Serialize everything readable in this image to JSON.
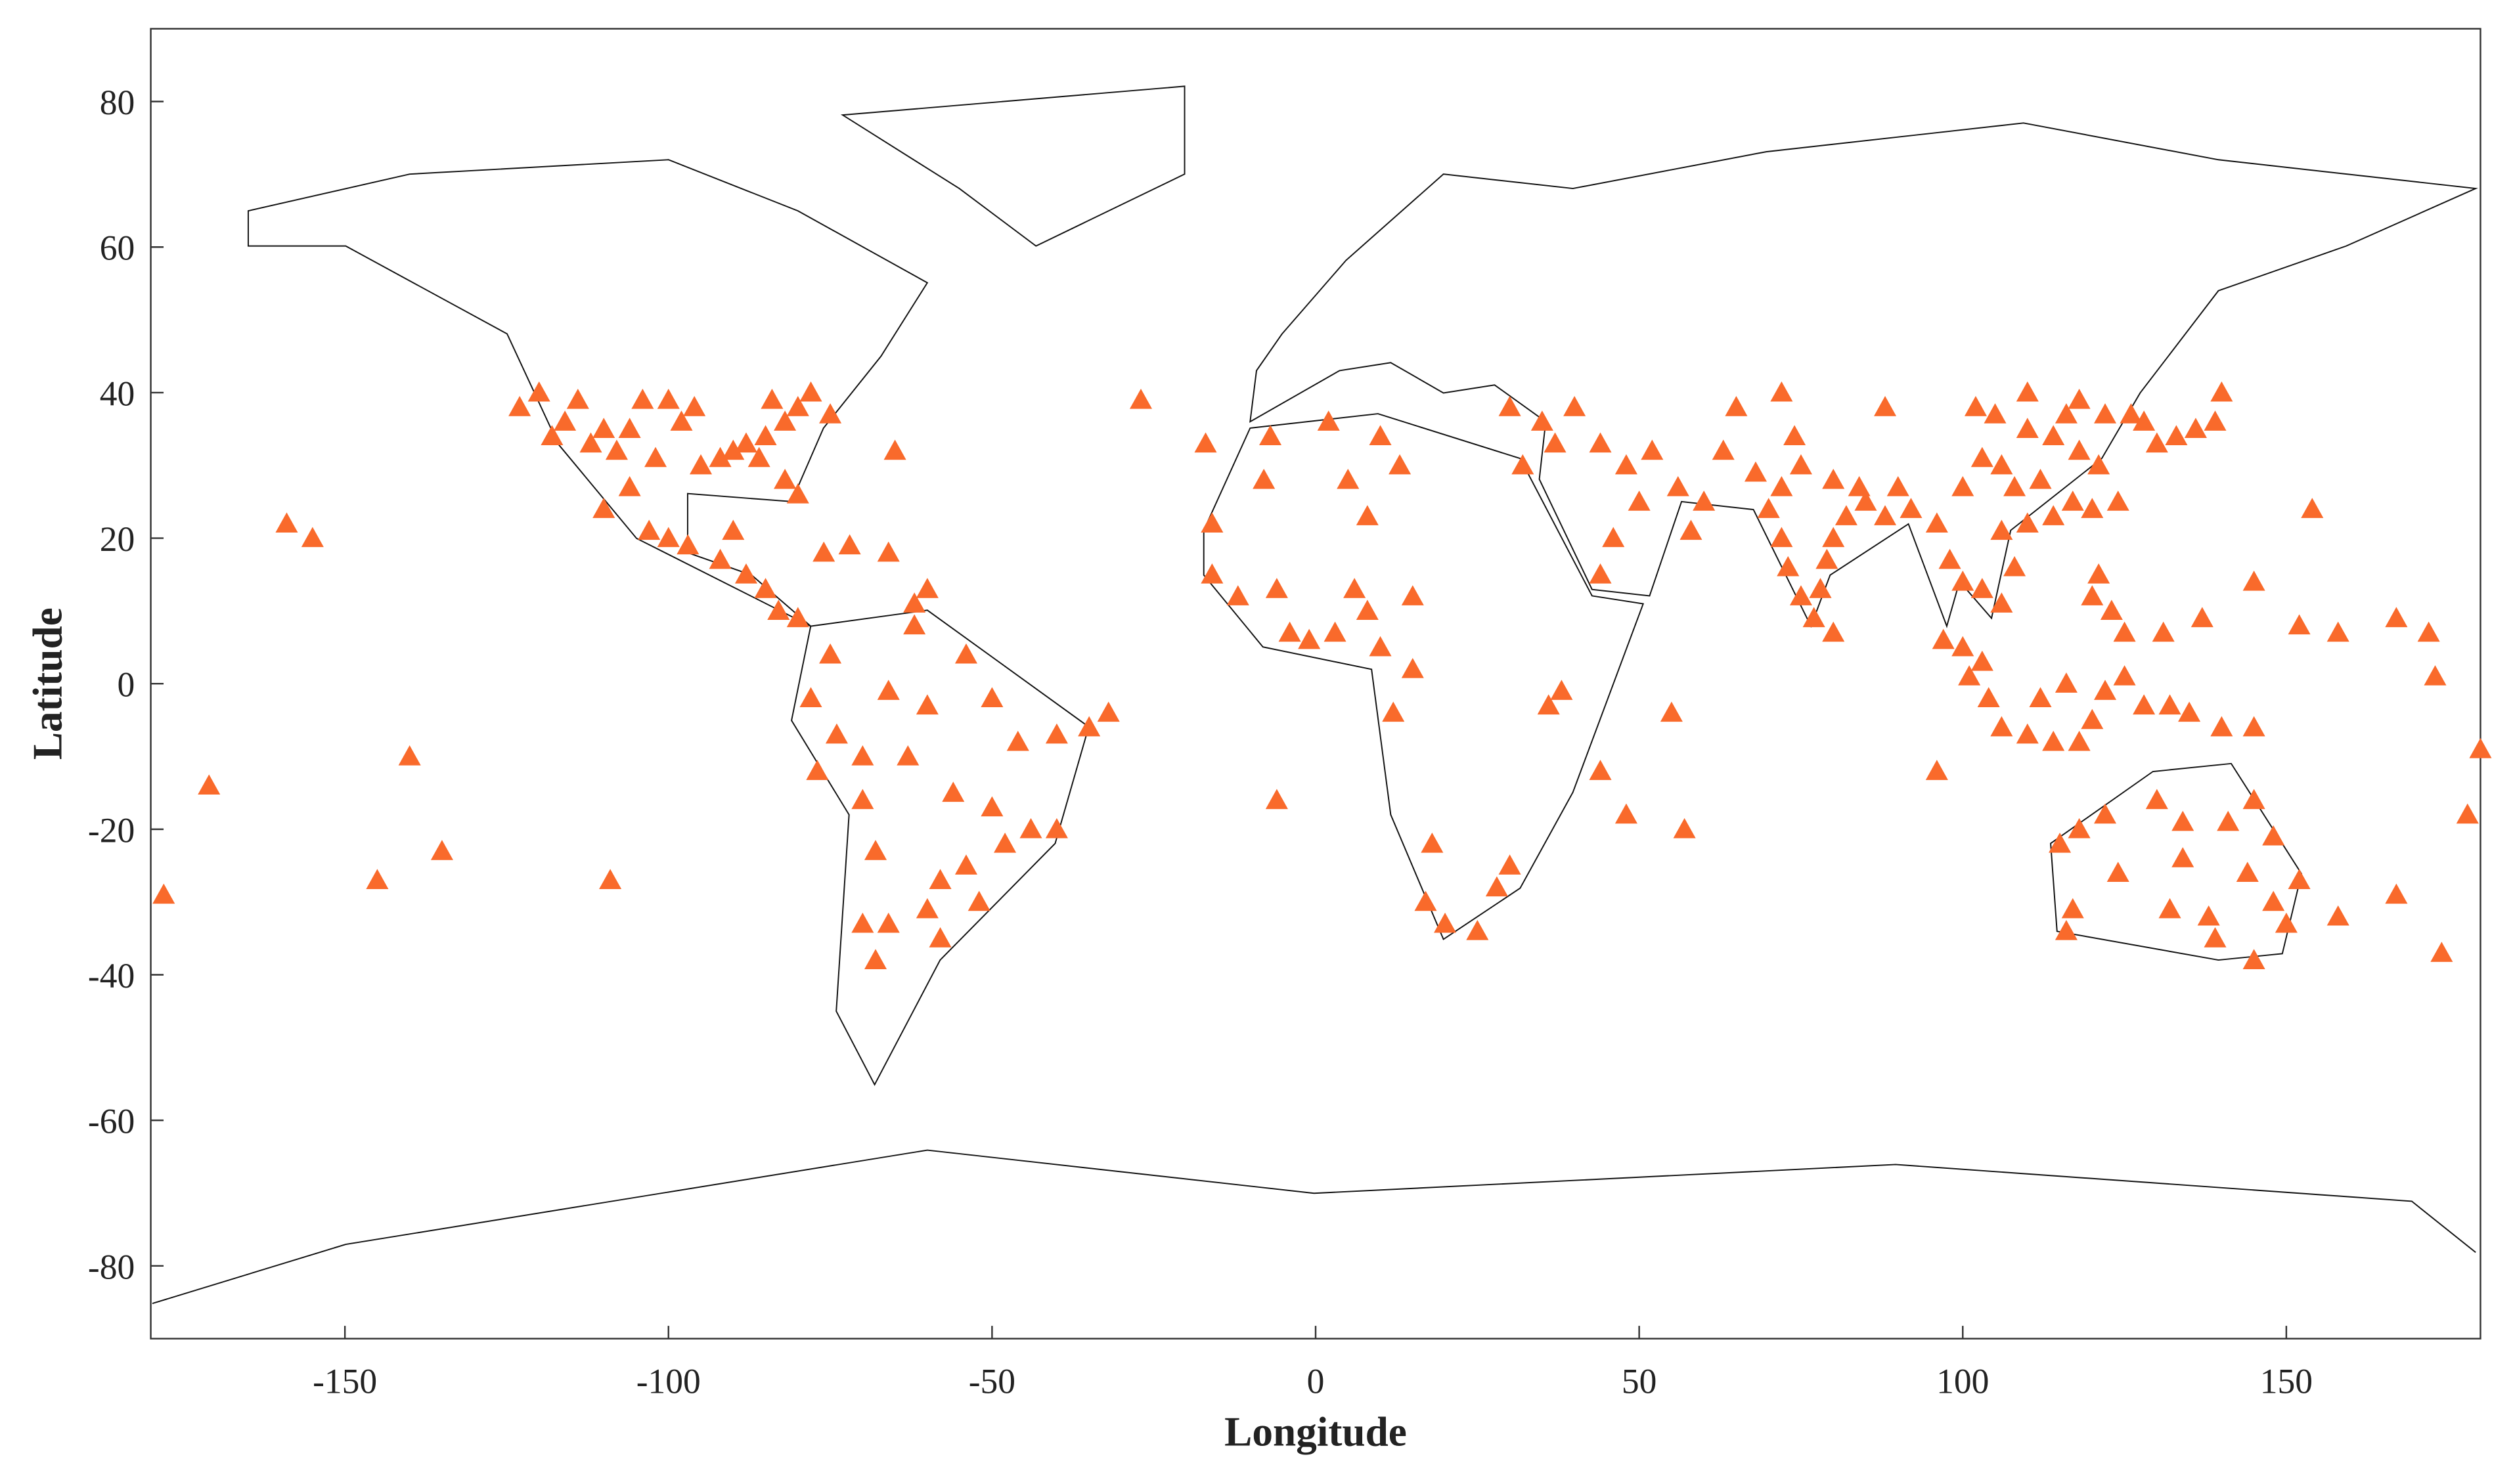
{
  "chart_data": {
    "type": "scatter",
    "x_label": "Longitude",
    "y_label": "Latitude",
    "xlim": [
      -180,
      180
    ],
    "ylim": [
      -90,
      90
    ],
    "xticks": [
      -150,
      -100,
      -50,
      0,
      50,
      100,
      150
    ],
    "yticks": [
      -80,
      -60,
      -40,
      -20,
      0,
      20,
      40,
      60,
      80
    ],
    "marker": "triangle",
    "color": "#f96a2b",
    "x": [
      -123,
      -120,
      -118,
      -116,
      -112,
      -110,
      -106,
      -104,
      -100,
      -98,
      -95,
      -92,
      -90,
      -88,
      -85,
      -82,
      -80,
      -78,
      -75,
      -82,
      -80,
      -108,
      -114,
      -96,
      -102,
      -86,
      -84,
      -110,
      -106,
      -103,
      -100,
      -97,
      -92,
      -90,
      -88,
      -85,
      -83,
      -80,
      -76,
      -72,
      -66,
      -62,
      -60,
      -159,
      -155,
      -140,
      -171,
      -145,
      -135,
      -109,
      -178,
      -27,
      -65,
      -75,
      -78,
      -74,
      -77,
      -70,
      -68,
      -70,
      -66,
      -60,
      -58,
      -54,
      -48,
      -44,
      -40,
      -46,
      -40,
      -35,
      -32,
      -50,
      -60,
      -63,
      -56,
      -50,
      -52,
      -58,
      -68,
      -70,
      -54,
      -62,
      -66,
      -17,
      -7,
      -8,
      -16,
      -16,
      -12,
      -6,
      -4,
      -1,
      3,
      6,
      8,
      10,
      15,
      12,
      18,
      17,
      20,
      25,
      28,
      30,
      36,
      38,
      44,
      48,
      55,
      57,
      -6,
      2,
      10,
      13,
      5,
      8,
      15,
      32,
      37,
      30,
      35,
      40,
      44,
      48,
      52,
      56,
      60,
      50,
      46,
      44,
      58,
      63,
      68,
      70,
      72,
      73,
      75,
      77,
      80,
      78,
      79,
      80,
      82,
      85,
      88,
      75,
      74,
      72,
      80,
      84,
      90,
      92,
      96,
      98,
      100,
      103,
      106,
      108,
      106,
      110,
      114,
      117,
      120,
      121,
      118,
      114,
      110,
      106,
      103,
      100,
      108,
      112,
      116,
      118,
      122,
      126,
      128,
      133,
      136,
      139,
      140,
      130,
      124,
      121,
      123,
      125,
      120,
      103,
      100,
      101,
      104,
      106,
      110,
      114,
      118,
      120,
      122,
      125,
      128,
      132,
      135,
      140,
      145,
      116,
      112,
      96,
      97,
      88,
      72,
      65,
      102,
      110,
      105,
      131,
      137,
      145,
      154,
      152,
      158,
      167,
      172,
      173,
      180,
      178,
      167,
      174,
      158,
      115,
      118,
      122,
      130,
      134,
      141,
      145,
      148,
      152,
      150,
      145,
      139,
      138,
      132,
      124,
      117,
      116,
      148,
      134,
      144
    ],
    "y": [
      38,
      40,
      34,
      36,
      33,
      35,
      35,
      39,
      39,
      36,
      30,
      31,
      32,
      33,
      34,
      36,
      38,
      40,
      37,
      28,
      26,
      32,
      39,
      38,
      31,
      31,
      39,
      24,
      27,
      21,
      20,
      19,
      17,
      21,
      15,
      13,
      10,
      9,
      18,
      19,
      18,
      11,
      13,
      22,
      20,
      -10,
      -14,
      -27,
      -23,
      -27,
      -29,
      39,
      32,
      4,
      -2,
      -7,
      -12,
      -16,
      -23,
      -33,
      -33,
      -31,
      -27,
      -25,
      -22,
      -20,
      -20,
      -8,
      -7,
      -6,
      -4,
      -2,
      -3,
      -10,
      -15,
      -17,
      -30,
      -35,
      -38,
      -10,
      4,
      8,
      -1,
      33,
      34,
      28,
      22,
      15,
      12,
      13,
      7,
      6,
      7,
      13,
      10,
      5,
      2,
      -4,
      -22,
      -30,
      -33,
      -34,
      -28,
      -25,
      -3,
      -1,
      -12,
      -18,
      -4,
      -20,
      -16,
      36,
      34,
      30,
      28,
      23,
      12,
      30,
      33,
      38,
      36,
      38,
      33,
      30,
      32,
      27,
      25,
      25,
      20,
      15,
      21,
      32,
      29,
      24,
      20,
      16,
      12,
      9,
      7,
      13,
      17,
      20,
      23,
      25,
      23,
      30,
      34,
      27,
      28,
      27,
      27,
      24,
      22,
      17,
      14,
      13,
      11,
      16,
      21,
      22,
      23,
      25,
      24,
      30,
      32,
      34,
      35,
      30,
      31,
      27,
      27,
      28,
      37,
      39,
      37,
      37,
      36,
      34,
      35,
      36,
      40,
      33,
      25,
      15,
      10,
      7,
      12,
      3,
      5,
      1,
      -2,
      -6,
      -7,
      -8,
      -8,
      -5,
      -1,
      1,
      -3,
      -3,
      -4,
      -6,
      -6,
      0,
      -2,
      -12,
      6,
      38,
      40,
      38,
      38,
      40,
      37,
      7,
      9,
      14,
      24,
      8,
      7,
      9,
      7,
      1,
      -9,
      -18,
      -29,
      -37,
      -32,
      -22,
      -20,
      -18,
      -16,
      -19,
      -19,
      -16,
      -21,
      -27,
      -33,
      -38,
      -35,
      -32,
      -31,
      -26,
      -31,
      -34,
      -30,
      -24,
      -26
    ]
  }
}
